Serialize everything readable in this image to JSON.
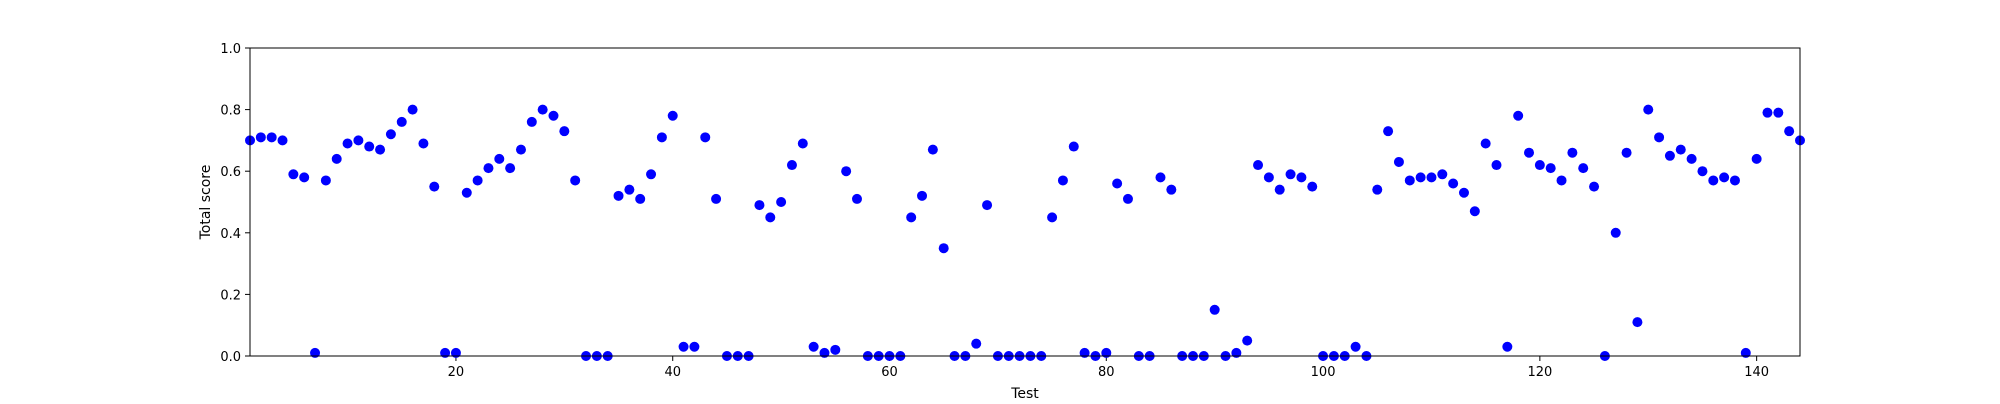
{
  "chart_data": {
    "type": "scatter",
    "title": "",
    "xlabel": "Test",
    "ylabel": "Total score",
    "xlim": [
      1,
      144
    ],
    "ylim": [
      0.0,
      1.0
    ],
    "x_ticks": [
      20,
      40,
      60,
      80,
      100,
      120,
      140
    ],
    "x_tick_labels": [
      "20",
      "40",
      "60",
      "80",
      "100",
      "120",
      "140"
    ],
    "y_ticks": [
      0.0,
      0.2,
      0.4,
      0.6,
      0.8,
      1.0
    ],
    "y_tick_labels": [
      "0.0",
      "0.2",
      "0.4",
      "0.6",
      "0.8",
      "1.0"
    ],
    "grid": false,
    "legend": "none",
    "marker_color": "#0000ff",
    "series": [
      {
        "x": [
          1,
          2,
          3,
          4,
          5,
          6,
          7,
          8,
          9,
          10,
          11,
          12,
          13,
          14,
          15,
          16,
          17,
          18,
          19,
          20,
          21,
          22,
          23,
          24,
          25,
          26,
          27,
          28,
          29,
          30,
          31,
          32,
          33,
          34,
          35,
          36,
          37,
          38,
          39,
          40,
          41,
          42,
          43,
          44,
          45,
          46,
          47,
          48,
          49,
          50,
          51,
          52,
          53,
          54,
          55,
          56,
          57,
          58,
          59,
          60,
          61,
          62,
          63,
          64,
          65,
          66,
          67,
          68,
          69,
          70,
          71,
          72,
          73,
          74,
          75,
          76,
          77,
          78,
          79,
          80,
          81,
          82,
          83,
          84,
          85,
          86,
          87,
          88,
          89,
          90,
          91,
          92,
          93,
          94,
          95,
          96,
          97,
          98,
          99,
          100,
          101,
          102,
          103,
          104,
          105,
          106,
          107,
          108,
          109,
          110,
          111,
          112,
          113,
          114,
          115,
          116,
          117,
          118,
          119,
          120,
          121,
          122,
          123,
          124,
          125,
          126,
          127,
          128,
          129,
          130,
          131,
          132,
          133,
          134,
          135,
          136,
          137,
          138,
          139,
          140,
          141,
          142,
          143,
          144
        ],
        "y": [
          0.7,
          0.71,
          0.71,
          0.7,
          0.59,
          0.58,
          0.01,
          0.57,
          0.64,
          0.69,
          0.7,
          0.68,
          0.67,
          0.72,
          0.76,
          0.8,
          0.69,
          0.55,
          0.01,
          0.01,
          0.53,
          0.57,
          0.61,
          0.64,
          0.61,
          0.67,
          0.76,
          0.8,
          0.78,
          0.73,
          0.57,
          0.0,
          0.0,
          0.0,
          0.52,
          0.54,
          0.51,
          0.59,
          0.71,
          0.78,
          0.03,
          0.03,
          0.71,
          0.51,
          0.0,
          0.0,
          0.0,
          0.49,
          0.45,
          0.5,
          0.62,
          0.69,
          0.03,
          0.01,
          0.02,
          0.6,
          0.51,
          0.0,
          0.0,
          0.0,
          0.0,
          0.45,
          0.52,
          0.67,
          0.35,
          0.0,
          0.0,
          0.04,
          0.49,
          0.0,
          0.0,
          0.0,
          0.0,
          0.0,
          0.45,
          0.57,
          0.68,
          0.01,
          0.0,
          0.01,
          0.56,
          0.51,
          0.0,
          0.0,
          0.58,
          0.54,
          0.0,
          0.0,
          0.0,
          0.15,
          0.0,
          0.01,
          0.05,
          0.62,
          0.58,
          0.54,
          0.59,
          0.58,
          0.55,
          0.0,
          0.0,
          0.0,
          0.03,
          0.0,
          0.54,
          0.73,
          0.63,
          0.57,
          0.58,
          0.58,
          0.59,
          0.56,
          0.53,
          0.47,
          0.69,
          0.62,
          0.03,
          0.78,
          0.66,
          0.62,
          0.61,
          0.57,
          0.66,
          0.61,
          0.55,
          0.0,
          0.4,
          0.66,
          0.11,
          0.8,
          0.71,
          0.65,
          0.67,
          0.64,
          0.6,
          0.57,
          0.58,
          0.57,
          0.01,
          0.64,
          0.79,
          0.79,
          0.73,
          0.7
        ]
      }
    ]
  }
}
